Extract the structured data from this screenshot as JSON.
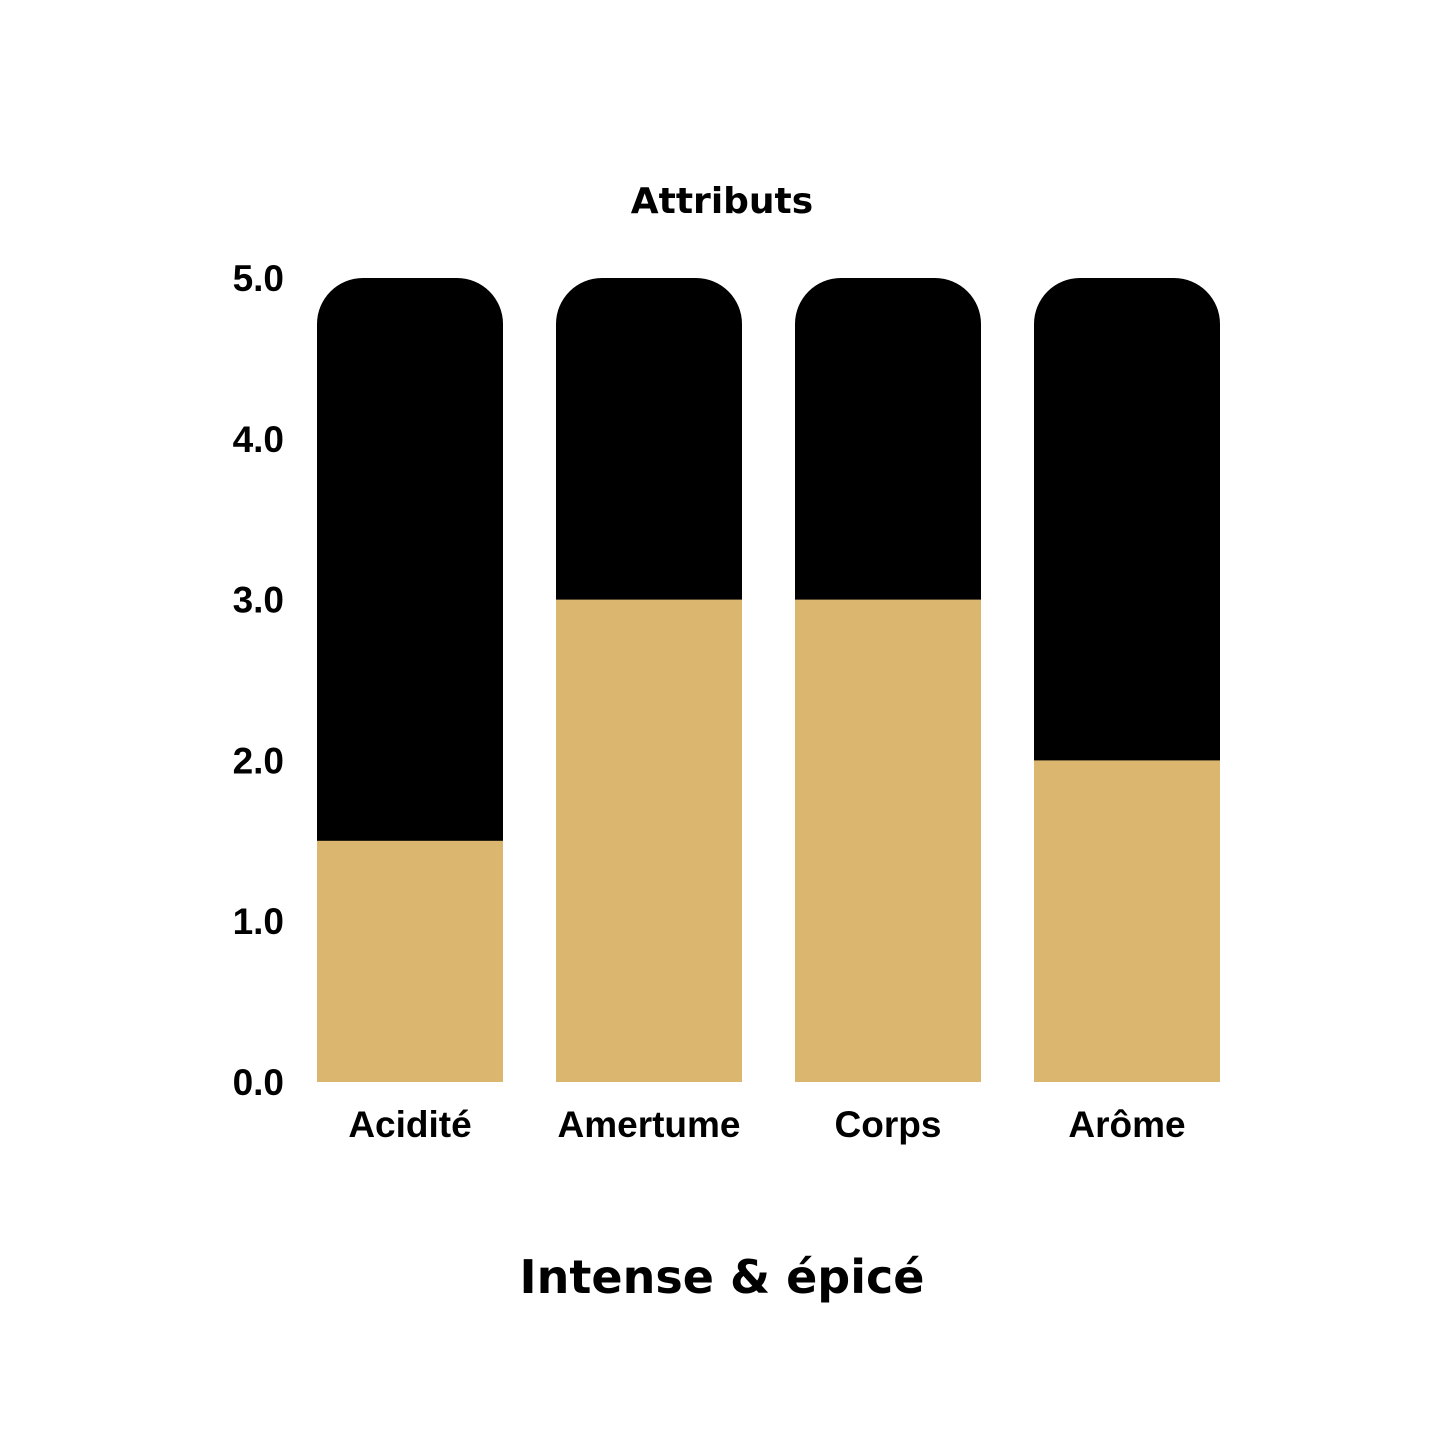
{
  "chart_data": {
    "type": "bar",
    "title": "Attributs",
    "caption": "Intense & épicé",
    "categories": [
      "Acidité",
      "Amertume",
      "Corps",
      "Arôme"
    ],
    "values": [
      1.5,
      3.0,
      3.0,
      2.0
    ],
    "max_values": [
      5.0,
      5.0,
      5.0,
      5.0
    ],
    "ylim": [
      0,
      5
    ],
    "yticks": [
      "0.0",
      "1.0",
      "2.0",
      "3.0",
      "4.0",
      "5.0"
    ],
    "grid": false,
    "legend": "none",
    "colors": {
      "value": "#dbb66e",
      "remainder": "#000000"
    }
  }
}
